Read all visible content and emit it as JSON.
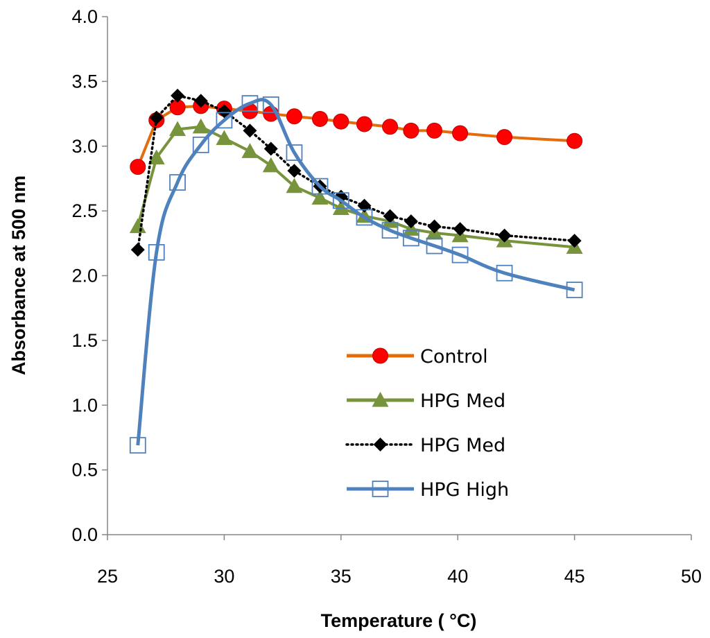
{
  "chart_data": {
    "type": "line",
    "title": "",
    "xlabel": "Temperature ( °C)",
    "ylabel": "Absorbance at 500 nm",
    "xlim": [
      25,
      50
    ],
    "ylim": [
      0,
      4
    ],
    "xticks": [
      "25",
      "30",
      "35",
      "40",
      "45",
      "50"
    ],
    "yticks": [
      "0.0",
      "0.5",
      "1.0",
      "1.5",
      "2.0",
      "2.5",
      "3.0",
      "3.5",
      "4.0"
    ],
    "grid": false,
    "legend_position": "center-right",
    "series": [
      {
        "name": "Control",
        "color": "#E46C0A",
        "marker": "circle",
        "marker_color": "#FF0000",
        "line": "solid",
        "x": [
          26.3,
          27.1,
          28.0,
          29.0,
          30.0,
          31.1,
          32.0,
          33.0,
          34.1,
          35.0,
          36.0,
          37.1,
          38.0,
          39.0,
          40.1,
          42.0,
          45.0
        ],
        "y": [
          2.84,
          3.2,
          3.3,
          3.31,
          3.29,
          3.27,
          3.25,
          3.23,
          3.21,
          3.19,
          3.17,
          3.15,
          3.12,
          3.12,
          3.1,
          3.07,
          3.04
        ]
      },
      {
        "name": "HPG Med",
        "color": "#77933C",
        "marker": "triangle",
        "marker_color": "#77933C",
        "line": "solid",
        "x": [
          26.3,
          27.1,
          28.0,
          29.0,
          30.0,
          31.1,
          32.0,
          33.0,
          34.1,
          35.0,
          36.0,
          37.1,
          38.0,
          39.0,
          40.1,
          42.0,
          45.0
        ],
        "y": [
          2.38,
          2.91,
          3.13,
          3.15,
          3.06,
          2.96,
          2.85,
          2.69,
          2.6,
          2.52,
          2.46,
          2.42,
          2.36,
          2.33,
          2.31,
          2.27,
          2.22
        ]
      },
      {
        "name": "HPG Med",
        "color": "#000000",
        "marker": "diamond",
        "marker_color": "#000000",
        "line": "dotted",
        "x": [
          26.3,
          27.1,
          28.0,
          29.0,
          30.0,
          31.1,
          32.0,
          33.0,
          34.1,
          35.0,
          36.0,
          37.1,
          38.0,
          39.0,
          40.1,
          42.0,
          45.0
        ],
        "y": [
          2.2,
          3.22,
          3.39,
          3.35,
          3.27,
          3.12,
          2.98,
          2.81,
          2.69,
          2.61,
          2.54,
          2.46,
          2.42,
          2.38,
          2.36,
          2.31,
          2.27
        ]
      },
      {
        "name": "HPG High",
        "color": "#4F81BD",
        "marker": "square-open",
        "marker_color": "#4F81BD",
        "line": "solid",
        "smooth": true,
        "x": [
          26.3,
          27.1,
          28.0,
          29.0,
          30.0,
          31.1,
          32.0,
          33.0,
          34.1,
          35.0,
          36.0,
          37.1,
          38.0,
          39.0,
          40.1,
          42.0,
          45.0
        ],
        "y": [
          0.69,
          2.18,
          2.72,
          3.01,
          3.2,
          3.33,
          3.32,
          2.95,
          2.69,
          2.58,
          2.45,
          2.35,
          2.29,
          2.23,
          2.16,
          2.02,
          1.89
        ]
      }
    ]
  }
}
